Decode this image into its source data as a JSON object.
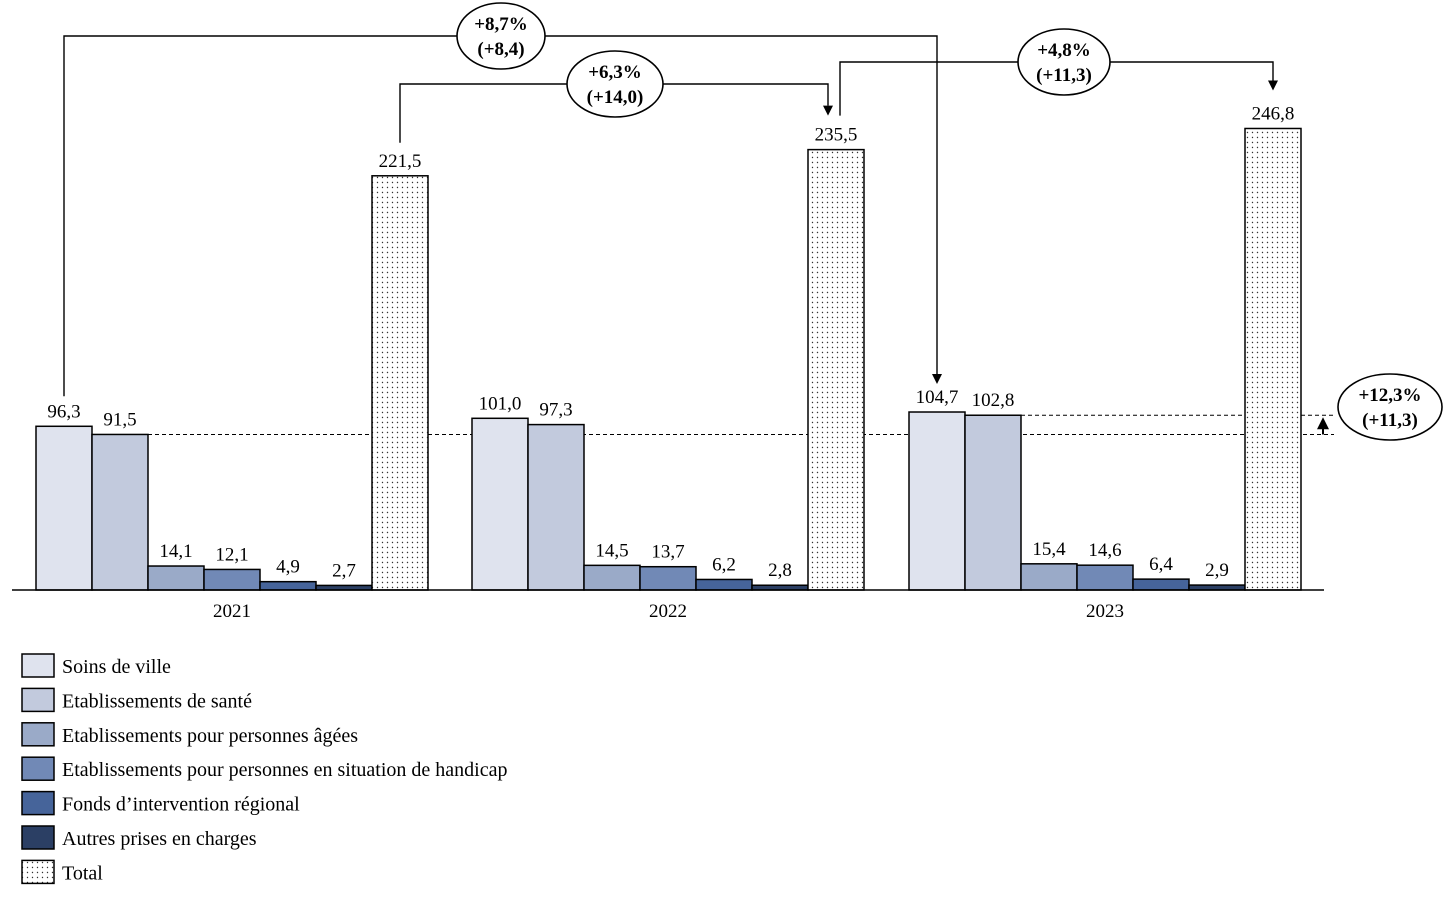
{
  "chart_data": {
    "type": "bar",
    "categories": [
      "2021",
      "2022",
      "2023"
    ],
    "series": [
      {
        "name": "Soins de ville",
        "color": "#dfe3ee",
        "values": [
          96.3,
          101.0,
          104.7
        ],
        "labels": [
          "96,3",
          "101,0",
          "104,7"
        ]
      },
      {
        "name": "Etablissements de santé",
        "color": "#c2cadd",
        "values": [
          91.5,
          97.3,
          102.8
        ],
        "labels": [
          "91,5",
          "97,3",
          "102,8"
        ]
      },
      {
        "name": "Etablissements pour personnes âgées",
        "color": "#9aaac8",
        "values": [
          14.1,
          14.5,
          15.4
        ],
        "labels": [
          "14,1",
          "14,5",
          "15,4"
        ]
      },
      {
        "name": "Etablissements pour personnes en situation de handicap",
        "color": "#7189b6",
        "values": [
          12.1,
          13.7,
          14.6
        ],
        "labels": [
          "12,1",
          "13,7",
          "14,6"
        ]
      },
      {
        "name": "Fonds d’intervention régional",
        "color": "#46649a",
        "values": [
          4.9,
          6.2,
          6.4
        ],
        "labels": [
          "4,9",
          "6,2",
          "6,4"
        ]
      },
      {
        "name": "Autres prises en charges",
        "color": "#2b3f64",
        "values": [
          2.7,
          2.8,
          2.9
        ],
        "labels": [
          "2,7",
          "2,8",
          "2,9"
        ]
      },
      {
        "name": "Total",
        "color": "dotted",
        "values": [
          221.5,
          235.5,
          246.8
        ],
        "labels": [
          "221,5",
          "235,5",
          "246,8"
        ]
      }
    ],
    "annotations": [
      {
        "line1": "+8,7%",
        "line2": "(+8,4)"
      },
      {
        "line1": "+6,3%",
        "line2": "(+14,0)"
      },
      {
        "line1": "+4,8%",
        "line2": "(+11,3)"
      },
      {
        "line1": "+12,3%",
        "line2": "(+11,3)"
      }
    ],
    "grid": false,
    "legend_position": "bottom-left"
  }
}
